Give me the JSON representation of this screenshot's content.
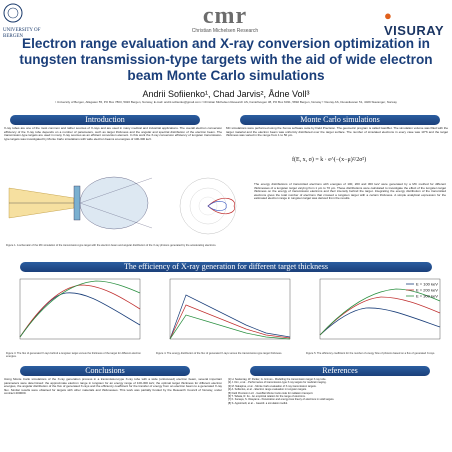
{
  "header": {
    "cmr": {
      "word": "cmr",
      "sub": "Christian Michelsen Research"
    },
    "university": "UNIVERSITY OF BERGEN",
    "visuray": {
      "prefix": "VISURAY",
      "suffix": ""
    }
  },
  "title": "Electron range evaluation and X-ray conversion optimization in tungsten transmission-type targets with the aid of wide electron beam Monte Carlo simulations",
  "authors": "Andrii Sofiienko¹, Chad Jarvis², Ådne Voll³",
  "affiliations": "¹ University of Bergen, Allégaten 55, PO Box 7803, 5020 Bergen, Norway, E-mail: andrii.sofiienko@gmail.com  ² Christian Michelsen Research AS, Fantoftvegen 38, PO Box 6031, 5892 Bergen, Norway  ³ Visuray AS, Dusavikveien 51, 4029 Stavanger, Norway",
  "sections": {
    "intro": {
      "head": "Introduction",
      "text": "X-ray tubes are one of the most common and rather sources of X-rays and are used in many medical and industrial applications. The overall electron conversion efficiency of the X-ray tube depends on a number of parameters, such as target thickness and the angular and spectral distribution of the electron beam. The transmission-type targets are used in many X-ray sources as an efficient conversion element. In this work the X-ray conversion efficiency of tungsten transmission-type targets was investigated by Monte Carlo simulations with wide electron beams at energies of 100-300 keV."
    },
    "mc": {
      "head": "Monte Carlo simulations",
      "text": "MC simulations were performed using the Xenos software suite by Field Precision. The geometric program is called GamBet. The simulation volume was filled with the target material and the electron beam was uniformly distributed over the target surface. The number of simulated electrons in every case was 10^6 and the target thickness was varied in the range from 1 to 50 μm.",
      "formula": "f(E, x, σ) = k · e^(−(x−μ)²/2σ²)",
      "text2": "The energy distributions of transmitted electrons with energies of 100, 200 and 300 keV were generated by a MC method for different thicknesses of a tungsten target varying from 1 μm to 70 μm. These distributions were calculated to investigate the effect of the tungsten target thickness on the energy of transmission electrons and their intensity behind the target. Integrating the energy distribution of the transmitted electrons gives the total number of electrons that crossed a tungsten target with a certain thickness. A simple analytical expression for the estimated electron range in tungsten target was derived from the results."
    },
    "figures": {
      "fig1_caption": "Figure 1. A schematic of the MC simulation of the transmission-type target with the electron beam and angular distribution of the X-ray photons generated by the accelerating electrons.",
      "eff_head": "The efficiency of X-ray generation for different target thickness",
      "cap3": "Figure 3. The flux of generated X-rays behind a tungsten target versus the thickness of the target for different electron energies.",
      "cap4": "Figure 4. The energy distribution of the flux of generated X-rays versus the transmission-type target thickness.",
      "cap5": "Figure 5. The efficiency coefficient for the number of energy flow of photons based on a flux of generated X-rays.",
      "legend": [
        "E = 100 keV",
        "E = 200 keV",
        "E = 300 keV"
      ]
    },
    "conclusions": {
      "head": "Conclusions",
      "text": "Using Monte Carlo simulations of the X-ray generation process in a transmission-type X-ray tube with a wide (unfocused) electron beam, several important parameters were determined: the approximate electron range in tungsten for an energy range of 100-300 keV, the optimal target thickness for different electron energies, the angular distribution of the flux of generated X-rays and the efficiency coefficient for the transfer of energy from an electron beam to a generated X-ray flux. Similar results were obtained for targets with other materials and thicknesses. This work was partially funded by the Research Council of Norway, under contract 200000."
    },
    "references": {
      "head": "References",
      "items": [
        "[1] H. Seelentag, W. Parker, G. Grimes - Modelling the transmission target X-ray tube.",
        "[2] J. Kim, et al. - Performance of transmission-type X-ray targets for medical imaging.",
        "[3] M. Nakajima, et al. - Monte Carlo evaluation of X-ray transmission targets.",
        "[4] A. Sofiienko, et al. - Electron range evaluation in tungsten targets.",
        "[5] Field Precision LLC - GamBet Monte Carlo code for radiation transport.",
        "[6] T. Tabata, R. Ito - An empirical relation for the range of electrons.",
        "[7] K. Kanaya, S. Okayama - Penetration and energy-loss theory of electrons in solid targets.",
        "[8] S. Agostinelli, et al. - Geant4: a simulation toolkit."
      ]
    }
  }
}
